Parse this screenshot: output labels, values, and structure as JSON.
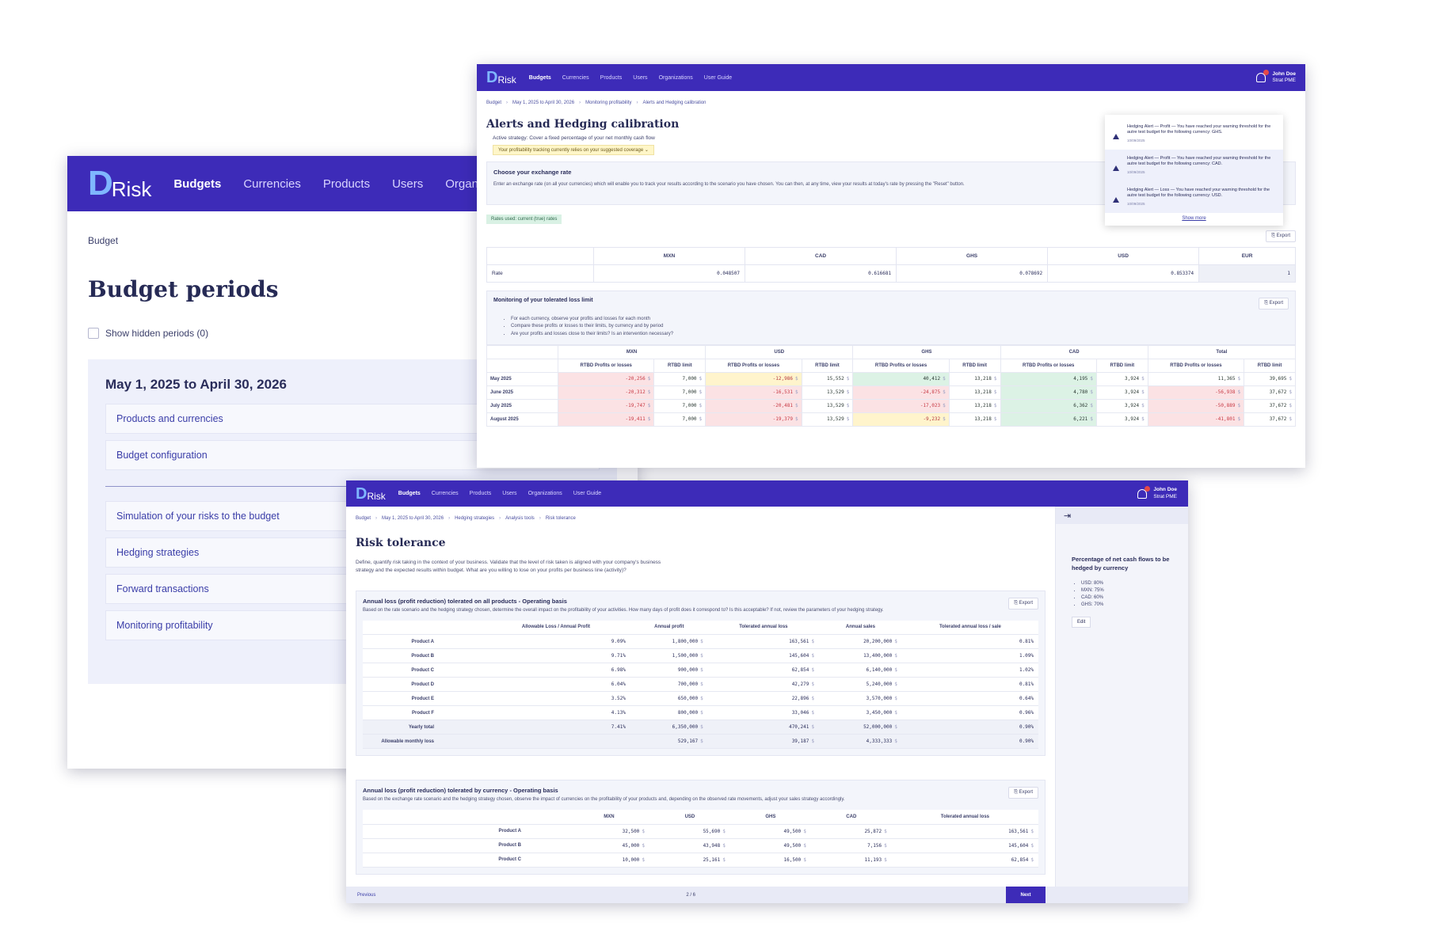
{
  "brand": {
    "logo_d": "D",
    "logo_text": "Risk"
  },
  "nav": {
    "w1_items": [
      "Budgets",
      "Currencies",
      "Products",
      "Users",
      "Organiza"
    ],
    "items": [
      "Budgets",
      "Currencies",
      "Products",
      "Users",
      "Organizations",
      "User Guide"
    ]
  },
  "user": {
    "name": "John Doe",
    "org": "Strat PME"
  },
  "budget_periods": {
    "breadcrumb": "Budget",
    "title": "Budget periods",
    "show_hidden": "Show hidden periods (0)",
    "period_title": "May 1, 2025 to April 30, 2026",
    "links_top": [
      "Products and currencies",
      "Budget configuration"
    ],
    "links_bottom": [
      "Simulation of your risks to the budget",
      "Hedging strategies",
      "Forward transactions",
      "Monitoring profitability"
    ]
  },
  "alerts": {
    "breadcrumbs": [
      "Budget",
      "May 1, 2025 to April 30, 2026",
      "Monitoring profitability",
      "Alerts and Hedging calibration"
    ],
    "title": "Alerts and Hedging calibration",
    "strategy": "Active strategy: Cover a fixed percentage of your net monthly cash flow",
    "tracking": "Your profitability tracking currently relies on your suggested coverage",
    "rate_box_title": "Choose your exchange rate",
    "rate_box_desc": "Enter an exchange rate (on all your currencies) which will enable you to track your results according to the scenario you have chosen. You can then, at any time, view your results at today's rate by pressing the \"Reset\" button.",
    "rates_used": "Rates used: current (true) rates",
    "export": "Export",
    "rate_table": {
      "headers": [
        "MXN",
        "CAD",
        "GHS",
        "USD",
        "EUR"
      ],
      "row_label": "Rate",
      "values": [
        "0.048507",
        "0.616681",
        "0.078692",
        "0.853374",
        "1"
      ]
    },
    "monitor": {
      "title": "Monitoring of your tolerated loss limit",
      "bullets": [
        "For each currency, observe your profits and losses for each month",
        "Compare these profits or losses to their limits, by currency and by period",
        "Are your profits and losses close to their limits? Is an intervention necessary?"
      ],
      "groups": [
        "MXN",
        "USD",
        "GHS",
        "CAD",
        "Total"
      ],
      "sub_pl": "RTBD Profits or losses",
      "sub_limit": "RTBD limit",
      "currency_suffix": "$",
      "rows": [
        {
          "month": "May 2025",
          "cells": [
            "-20,256",
            "7,000",
            "-12,986",
            "15,552",
            "40,412",
            "13,218",
            "4,195",
            "3,924",
            "11,365",
            "39,695"
          ],
          "colors": [
            "red",
            "wht",
            "yel",
            "wht",
            "grn",
            "wht",
            "grn",
            "wht",
            "wht",
            "wht"
          ]
        },
        {
          "month": "June 2025",
          "cells": [
            "-20,312",
            "7,000",
            "-16,531",
            "13,529",
            "-24,875",
            "13,218",
            "4,780",
            "3,924",
            "-56,938",
            "37,672"
          ],
          "colors": [
            "red",
            "wht",
            "red",
            "wht",
            "red",
            "wht",
            "grn",
            "wht",
            "red",
            "wht"
          ]
        },
        {
          "month": "July 2025",
          "cells": [
            "-19,747",
            "7,000",
            "-20,481",
            "13,529",
            "-17,023",
            "13,218",
            "6,362",
            "3,924",
            "-50,889",
            "37,672"
          ],
          "colors": [
            "red",
            "wht",
            "red",
            "wht",
            "red",
            "wht",
            "grn",
            "wht",
            "red",
            "wht"
          ]
        },
        {
          "month": "August 2025",
          "cells": [
            "-19,411",
            "7,000",
            "-19,379",
            "13,529",
            "-9,232",
            "13,218",
            "6,221",
            "3,924",
            "-41,801",
            "37,672"
          ],
          "colors": [
            "red",
            "wht",
            "red",
            "wht",
            "yel",
            "wht",
            "grn",
            "wht",
            "red",
            "wht"
          ]
        }
      ]
    },
    "notifications": [
      {
        "text": "Hedging Alert — Profit — You have reached your warning threshold for the autre test budget for the following currency: GHS.",
        "date": "10/09/2025"
      },
      {
        "text": "Hedging Alert — Profit — You have reached your warning threshold for the autre test budget for the following currency: CAD.",
        "date": "10/09/2025"
      },
      {
        "text": "Hedging Alert — Loss — You have reached your warning threshold for the autre test budget for the following currency: USD.",
        "date": "10/09/2025"
      }
    ],
    "show_more": "Show more"
  },
  "risk": {
    "breadcrumbs": [
      "Budget",
      "May 1, 2025 to April 30, 2026",
      "Hedging strategies",
      "Analysis tools",
      "Risk tolerance"
    ],
    "title": "Risk tolerance",
    "intro": "Define, quantify risk taking in the context of your business. Validate that the level of risk taken is aligned with your company's business strategy and the expected results within budget. What are you willing to lose on your profits per business line (activity)?",
    "box1": {
      "title": "Annual loss (profit reduction) tolerated on all products - Operating basis",
      "desc": "Based on the rate scenario and the hedging strategy chosen, determine the overall impact on the profitability of your activities. How many days of profit does it correspond to? Is this acceptable? If not, review the parameters of your hedging strategy.",
      "headers": [
        "Allowable Loss / Annual Profit",
        "Annual profit",
        "Tolerated annual loss",
        "Annual sales",
        "Tolerated annual loss / sale"
      ],
      "rows": [
        {
          "label": "Product A",
          "v": [
            "9.09%",
            "1,800,000",
            "163,561",
            "20,200,000",
            "0.81%"
          ]
        },
        {
          "label": "Product B",
          "v": [
            "9.71%",
            "1,500,000",
            "145,604",
            "13,400,000",
            "1.09%"
          ]
        },
        {
          "label": "Product C",
          "v": [
            "6.98%",
            "900,000",
            "62,854",
            "6,140,000",
            "1.02%"
          ]
        },
        {
          "label": "Product D",
          "v": [
            "6.04%",
            "700,000",
            "42,279",
            "5,240,000",
            "0.81%"
          ]
        },
        {
          "label": "Product E",
          "v": [
            "3.52%",
            "650,000",
            "22,896",
            "3,570,000",
            "0.64%"
          ]
        },
        {
          "label": "Product F",
          "v": [
            "4.13%",
            "800,000",
            "33,046",
            "3,450,000",
            "0.96%"
          ]
        },
        {
          "label": "Yearly total",
          "v": [
            "7.41%",
            "6,350,000",
            "470,241",
            "52,000,000",
            "0.90%"
          ]
        },
        {
          "label": "Allowable monthly loss",
          "v": [
            "",
            "529,167",
            "39,187",
            "4,333,333",
            "0.90%"
          ]
        }
      ]
    },
    "box2": {
      "title": "Annual loss (profit reduction) tolerated by currency - Operating basis",
      "desc": "Based on the exchange rate scenario and the hedging strategy chosen, observe the impact of currencies on the profitability of your products and, depending on the observed rate movements, adjust your sales strategy accordingly.",
      "headers": [
        "MXN",
        "USD",
        "GHS",
        "CAD",
        "Tolerated annual loss"
      ],
      "rows": [
        {
          "label": "Product A",
          "v": [
            "32,500",
            "55,690",
            "49,500",
            "25,872",
            "163,561"
          ]
        },
        {
          "label": "Product B",
          "v": [
            "45,000",
            "43,948",
            "49,500",
            "7,156",
            "145,604"
          ]
        },
        {
          "label": "Product C",
          "v": [
            "10,000",
            "25,161",
            "16,500",
            "11,193",
            "62,854"
          ]
        }
      ]
    },
    "side": {
      "title": "Percentage of net cash flows to be hedged by currency",
      "items": [
        "USD: 80%",
        "MXN: 75%",
        "CAD: 60%",
        "GHS: 70%"
      ],
      "edit": "Edit"
    },
    "footer": {
      "prev": "Previous",
      "page": "2 / 6",
      "next": "Next"
    }
  },
  "colors": {
    "nav": "#3d2bb8",
    "accent": "#7fb6ff"
  }
}
